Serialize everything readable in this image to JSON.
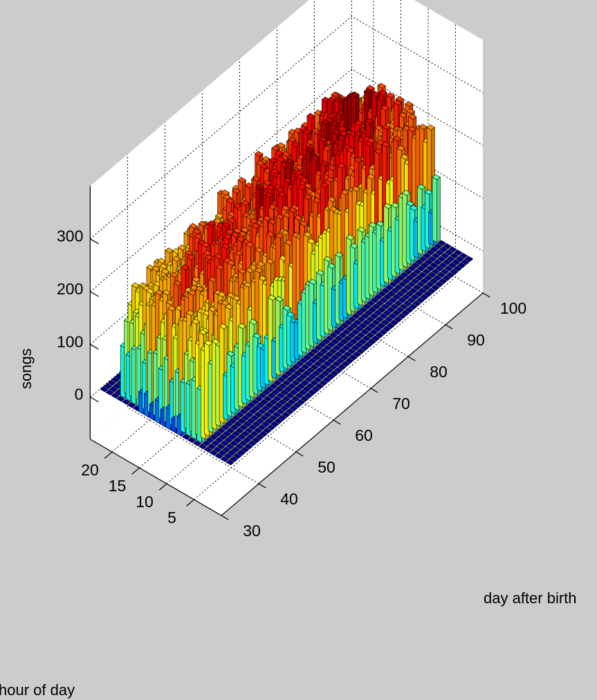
{
  "chart_data": {
    "type": "bar3d",
    "xlabel": "day after birth",
    "ylabel": "hour of day",
    "zlabel": "songs",
    "xlim": [
      30,
      100
    ],
    "ylim": [
      0,
      24
    ],
    "zlim": [
      0,
      300
    ],
    "x_ticks": [
      30,
      40,
      50,
      60,
      70,
      80,
      90,
      100
    ],
    "y_ticks": [
      5,
      10,
      15,
      20
    ],
    "z_ticks": [
      0,
      100,
      200,
      300
    ],
    "grid": true,
    "colormap": "jet",
    "days_range": [
      33,
      97
    ],
    "active_hours": [
      6,
      20
    ],
    "daily_peak_songs": [
      {
        "day": 33,
        "songs": 40
      },
      {
        "day": 35,
        "songs": 200
      },
      {
        "day": 40,
        "songs": 230
      },
      {
        "day": 45,
        "songs": 240
      },
      {
        "day": 50,
        "songs": 250
      },
      {
        "day": 55,
        "songs": 230
      },
      {
        "day": 60,
        "songs": 260
      },
      {
        "day": 65,
        "songs": 250
      },
      {
        "day": 70,
        "songs": 270
      },
      {
        "day": 75,
        "songs": 260
      },
      {
        "day": 80,
        "songs": 270
      },
      {
        "day": 85,
        "songs": 280
      },
      {
        "day": 90,
        "songs": 260
      },
      {
        "day": 95,
        "songs": 240
      },
      {
        "day": 97,
        "songs": 230
      }
    ]
  }
}
